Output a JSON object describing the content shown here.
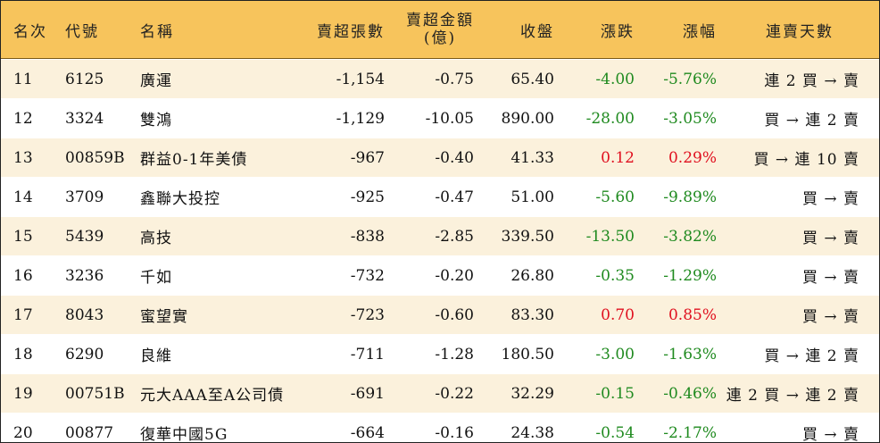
{
  "colors": {
    "header_bg": "#f7c45c",
    "odd_row_bg": "#fbf1dc",
    "even_row_bg": "#ffffff",
    "up_color": "#e0101f",
    "down_color": "#1f8a1f"
  },
  "headers": {
    "rank": "名次",
    "code": "代號",
    "name": "名稱",
    "net_sell_volume": "賣超張數",
    "net_sell_amount_line1": "賣超金額",
    "net_sell_amount_line2": "(億)",
    "close": "收盤",
    "change": "漲跌",
    "change_pct": "漲幅",
    "streak": "連賣天數"
  },
  "rows": [
    {
      "rank": "11",
      "code": "6125",
      "name": "廣運",
      "net_sell_volume": "-1,154",
      "net_sell_amount": "-0.75",
      "close": "65.40",
      "change": "-4.00",
      "change_pct": "-5.76%",
      "direction": "down",
      "streak": "連 2 買 → 賣"
    },
    {
      "rank": "12",
      "code": "3324",
      "name": "雙鴻",
      "net_sell_volume": "-1,129",
      "net_sell_amount": "-10.05",
      "close": "890.00",
      "change": "-28.00",
      "change_pct": "-3.05%",
      "direction": "down",
      "streak": "買 → 連 2 賣"
    },
    {
      "rank": "13",
      "code": "00859B",
      "name": "群益0-1年美債",
      "net_sell_volume": "-967",
      "net_sell_amount": "-0.40",
      "close": "41.33",
      "change": "0.12",
      "change_pct": "0.29%",
      "direction": "up",
      "streak": "買 → 連 10 賣"
    },
    {
      "rank": "14",
      "code": "3709",
      "name": "鑫聯大投控",
      "net_sell_volume": "-925",
      "net_sell_amount": "-0.47",
      "close": "51.00",
      "change": "-5.60",
      "change_pct": "-9.89%",
      "direction": "down",
      "streak": "買 → 賣"
    },
    {
      "rank": "15",
      "code": "5439",
      "name": "高技",
      "net_sell_volume": "-838",
      "net_sell_amount": "-2.85",
      "close": "339.50",
      "change": "-13.50",
      "change_pct": "-3.82%",
      "direction": "down",
      "streak": "買 → 賣"
    },
    {
      "rank": "16",
      "code": "3236",
      "name": "千如",
      "net_sell_volume": "-732",
      "net_sell_amount": "-0.20",
      "close": "26.80",
      "change": "-0.35",
      "change_pct": "-1.29%",
      "direction": "down",
      "streak": "買 → 賣"
    },
    {
      "rank": "17",
      "code": "8043",
      "name": "蜜望實",
      "net_sell_volume": "-723",
      "net_sell_amount": "-0.60",
      "close": "83.30",
      "change": "0.70",
      "change_pct": "0.85%",
      "direction": "up",
      "streak": "買 → 賣"
    },
    {
      "rank": "18",
      "code": "6290",
      "name": "良維",
      "net_sell_volume": "-711",
      "net_sell_amount": "-1.28",
      "close": "180.50",
      "change": "-3.00",
      "change_pct": "-1.63%",
      "direction": "down",
      "streak": "買 → 連 2 賣"
    },
    {
      "rank": "19",
      "code": "00751B",
      "name": "元大AAA至A公司債",
      "net_sell_volume": "-691",
      "net_sell_amount": "-0.22",
      "close": "32.29",
      "change": "-0.15",
      "change_pct": "-0.46%",
      "direction": "down",
      "streak": "連 2 買 → 連 2 賣"
    },
    {
      "rank": "20",
      "code": "00877",
      "name": "復華中國5G",
      "net_sell_volume": "-664",
      "net_sell_amount": "-0.16",
      "close": "24.38",
      "change": "-0.54",
      "change_pct": "-2.17%",
      "direction": "down",
      "streak": "買 → 賣"
    }
  ]
}
